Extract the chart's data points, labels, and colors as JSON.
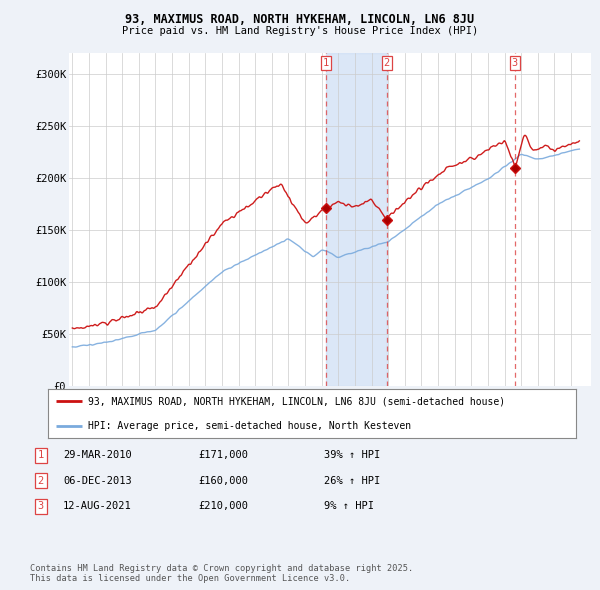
{
  "title1": "93, MAXIMUS ROAD, NORTH HYKEHAM, LINCOLN, LN6 8JU",
  "title2": "Price paid vs. HM Land Registry's House Price Index (HPI)",
  "ylim": [
    0,
    320000
  ],
  "yticks": [
    0,
    50000,
    100000,
    150000,
    200000,
    250000,
    300000
  ],
  "ytick_labels": [
    "£0",
    "£50K",
    "£100K",
    "£150K",
    "£200K",
    "£250K",
    "£300K"
  ],
  "sale_dates": [
    2010.25,
    2013.92,
    2021.62
  ],
  "sale_prices": [
    171000,
    160000,
    210000
  ],
  "sale_labels": [
    "1",
    "2",
    "3"
  ],
  "vline_color": "#dd4444",
  "red_line_color": "#cc1111",
  "blue_line_color": "#7aaadd",
  "fill_color": "#ccddf5",
  "legend_entries": [
    "93, MAXIMUS ROAD, NORTH HYKEHAM, LINCOLN, LN6 8JU (semi-detached house)",
    "HPI: Average price, semi-detached house, North Kesteven"
  ],
  "table_rows": [
    [
      "1",
      "29-MAR-2010",
      "£171,000",
      "39% ↑ HPI"
    ],
    [
      "2",
      "06-DEC-2013",
      "£160,000",
      "26% ↑ HPI"
    ],
    [
      "3",
      "12-AUG-2021",
      "£210,000",
      "9% ↑ HPI"
    ]
  ],
  "footnote": "Contains HM Land Registry data © Crown copyright and database right 2025.\nThis data is licensed under the Open Government Licence v3.0.",
  "background_color": "#eef2f8",
  "plot_bg_color": "#ffffff",
  "grid_color": "#cccccc"
}
